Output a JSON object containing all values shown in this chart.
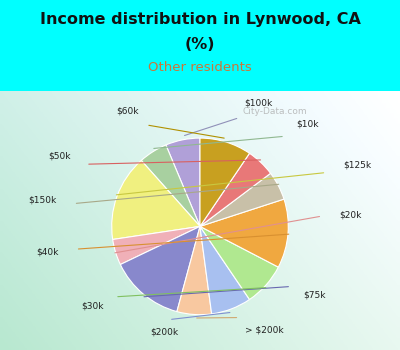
{
  "title_line1": "Income distribution in Lynwood, CA",
  "title_line2": "(%)",
  "subtitle": "Other residents",
  "title_color": "#111111",
  "subtitle_color": "#c8783a",
  "background_color": "#00ffff",
  "pie_bg_gradient_left": "#b8e8d0",
  "pie_bg_gradient_right": "#e8f8f0",
  "labels": [
    "$100k",
    "$10k",
    "$125k",
    "$20k",
    "$75k",
    "> $200k",
    "$200k",
    "$30k",
    "$40k",
    "$150k",
    "$50k",
    "$60k"
  ],
  "values": [
    6.0,
    5.0,
    15.0,
    4.5,
    13.0,
    6.0,
    7.0,
    7.5,
    12.0,
    5.0,
    5.0,
    9.0
  ],
  "colors": [
    "#b0a0d8",
    "#a8d0a0",
    "#f0f080",
    "#f0b0b8",
    "#8888cc",
    "#f8c8a0",
    "#a8c0f0",
    "#b0e890",
    "#f0a840",
    "#c8c0a8",
    "#e87878",
    "#c8a020"
  ],
  "startangle": 90,
  "watermark": "City-Data.com"
}
